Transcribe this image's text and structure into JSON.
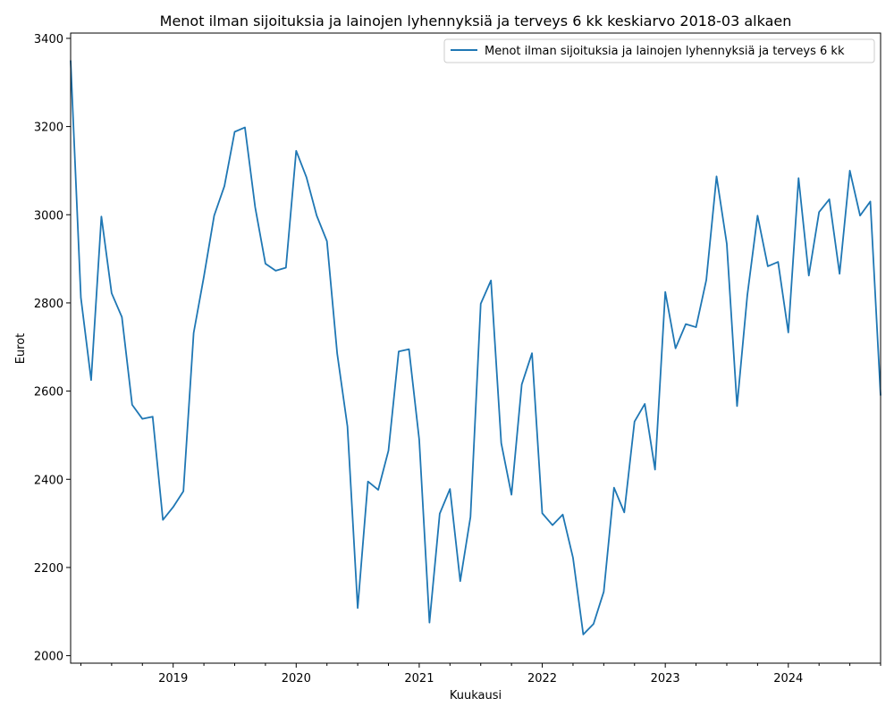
{
  "chart_data": {
    "type": "line",
    "title": "Menot ilman sijoituksia ja lainojen lyhennyksiä ja terveys 6 kk keskiarvo 2018-03 alkaen",
    "xlabel": "Kuukausi",
    "ylabel": "Eurot",
    "x_tick_labels": [
      "2019",
      "2020",
      "2021",
      "2022",
      "2023",
      "2024"
    ],
    "y_tick_labels": [
      "2000",
      "2200",
      "2400",
      "2600",
      "2800",
      "3000",
      "3200",
      "3400"
    ],
    "ylim": [
      1983,
      3412
    ],
    "xlim": [
      "2018-03",
      "2024-10"
    ],
    "legend_position": "top-right",
    "grid": false,
    "colors": {
      "line": "#1f77b4"
    },
    "series": [
      {
        "name": "Menot ilman sijoituksia ja lainojen lyhennyksiä ja terveys 6 kk",
        "x": [
          "2018-03",
          "2018-04",
          "2018-05",
          "2018-06",
          "2018-07",
          "2018-08",
          "2018-09",
          "2018-10",
          "2018-11",
          "2018-12",
          "2019-01",
          "2019-02",
          "2019-03",
          "2019-04",
          "2019-05",
          "2019-06",
          "2019-07",
          "2019-08",
          "2019-09",
          "2019-10",
          "2019-11",
          "2019-12",
          "2020-01",
          "2020-02",
          "2020-03",
          "2020-04",
          "2020-05",
          "2020-06",
          "2020-07",
          "2020-08",
          "2020-09",
          "2020-10",
          "2020-11",
          "2020-12",
          "2021-01",
          "2021-02",
          "2021-03",
          "2021-04",
          "2021-05",
          "2021-06",
          "2021-07",
          "2021-08",
          "2021-09",
          "2021-10",
          "2021-11",
          "2021-12",
          "2022-01",
          "2022-02",
          "2022-03",
          "2022-04",
          "2022-05",
          "2022-06",
          "2022-07",
          "2022-08",
          "2022-09",
          "2022-10",
          "2022-11",
          "2022-12",
          "2023-01",
          "2023-02",
          "2023-03",
          "2023-04",
          "2023-05",
          "2023-06",
          "2023-07",
          "2023-08",
          "2023-09",
          "2023-10",
          "2023-11",
          "2023-12",
          "2024-01",
          "2024-02",
          "2024-03",
          "2024-04",
          "2024-05",
          "2024-06",
          "2024-07",
          "2024-08",
          "2024-09",
          "2024-10"
        ],
        "values": [
          3350,
          2812,
          2625,
          2996,
          2822,
          2768,
          2569,
          2537,
          2542,
          2308,
          2337,
          2373,
          2732,
          2860,
          2998,
          3065,
          3188,
          3198,
          3017,
          2889,
          2873,
          2880,
          3145,
          3085,
          2998,
          2940,
          2685,
          2520,
          2108,
          2395,
          2376,
          2465,
          2690,
          2695,
          2490,
          2075,
          2322,
          2378,
          2169,
          2315,
          2798,
          2851,
          2482,
          2365,
          2615,
          2686,
          2323,
          2296,
          2320,
          2222,
          2048,
          2072,
          2145,
          2381,
          2325,
          2531,
          2571,
          2422,
          2825,
          2697,
          2752,
          2745,
          2852,
          3087,
          2934,
          2566,
          2817,
          2998,
          2883,
          2893,
          2733,
          3083,
          2862,
          3006,
          3035,
          2866,
          3100,
          2998,
          3030,
          2590
        ]
      }
    ]
  }
}
